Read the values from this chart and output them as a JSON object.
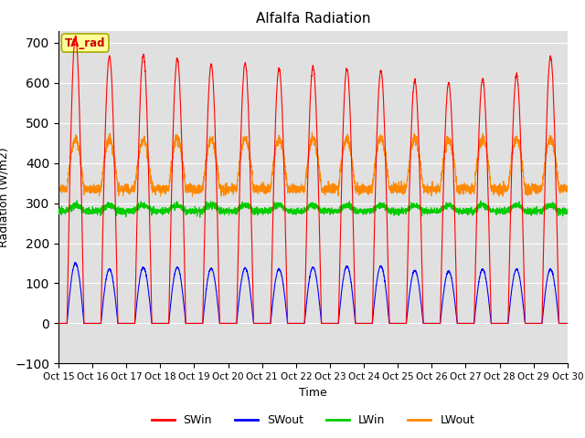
{
  "title": "Alfalfa Radiation",
  "ylabel": "Radiation (W/m2)",
  "xlabel": "Time",
  "ylim": [
    -100,
    730
  ],
  "yticks": [
    -100,
    0,
    100,
    200,
    300,
    400,
    500,
    600,
    700
  ],
  "annotation_text": "TA_rad",
  "n_days": 15,
  "points_per_day": 240,
  "colors": {
    "SWin": "#ff0000",
    "SWout": "#0000ff",
    "LWin": "#00cc00",
    "LWout": "#ff8800"
  },
  "background_color": "#e0e0e0",
  "grid_color": "#ffffff",
  "SWin_peaks": [
    715,
    665,
    670,
    660,
    645,
    650,
    635,
    640,
    635,
    630,
    605,
    600,
    610,
    620,
    665
  ],
  "SWout_peaks": [
    150,
    135,
    140,
    140,
    137,
    138,
    135,
    140,
    142,
    143,
    132,
    130,
    135,
    135,
    135
  ],
  "LWin_base": 280,
  "LWout_night": 335,
  "LWout_day_peak": 460,
  "date_labels": [
    "Oct 15",
    "Oct 16",
    "Oct 17",
    "Oct 18",
    "Oct 19",
    "Oct 20",
    "Oct 21",
    "Oct 22",
    "Oct 23",
    "Oct 24",
    "Oct 25",
    "Oct 26",
    "Oct 27",
    "Oct 28",
    "Oct 29",
    "Oct 30"
  ]
}
